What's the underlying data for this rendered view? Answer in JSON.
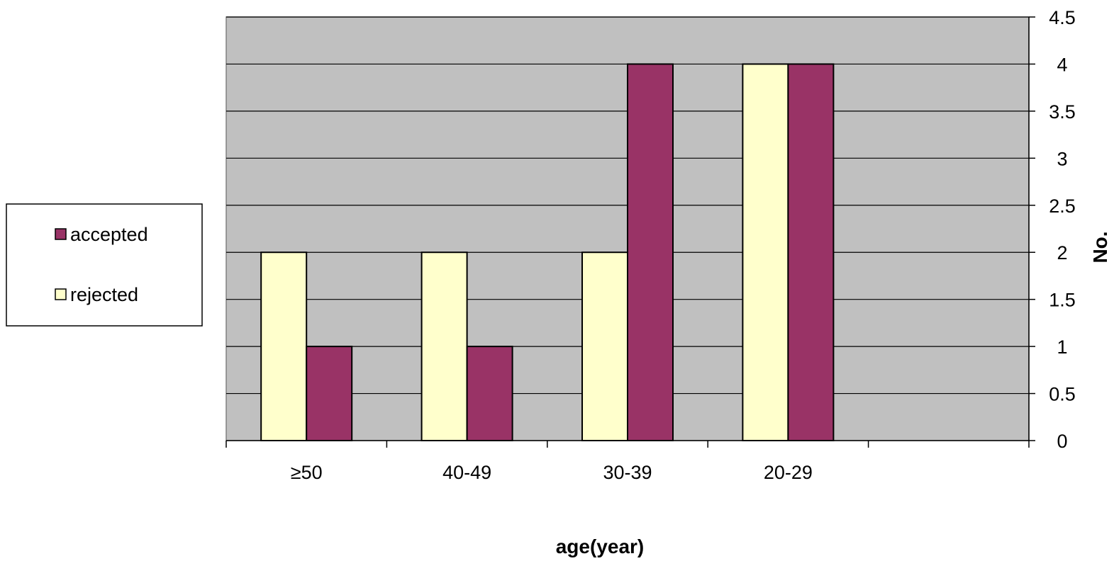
{
  "chart_data": {
    "type": "bar",
    "categories": [
      "≥50",
      "40-49",
      "30-39",
      "20-29",
      ""
    ],
    "series": [
      {
        "name": "rejected",
        "values": [
          2,
          2,
          2,
          4,
          null
        ],
        "color": "#FFFFCC"
      },
      {
        "name": "accepted",
        "values": [
          1,
          1,
          4,
          4,
          null
        ],
        "color": "#993366"
      }
    ],
    "title": "",
    "xlabel": "age(year)",
    "ylabel": "No.",
    "ylim": [
      0,
      4.5
    ],
    "yticks": [
      0,
      0.5,
      1,
      1.5,
      2,
      2.5,
      3,
      3.5,
      4,
      4.5
    ],
    "y_axis_side": "right",
    "grid": true,
    "plot_background": "#C0C0C0",
    "legend": {
      "position": "left",
      "order": [
        "accepted",
        "rejected"
      ]
    }
  }
}
